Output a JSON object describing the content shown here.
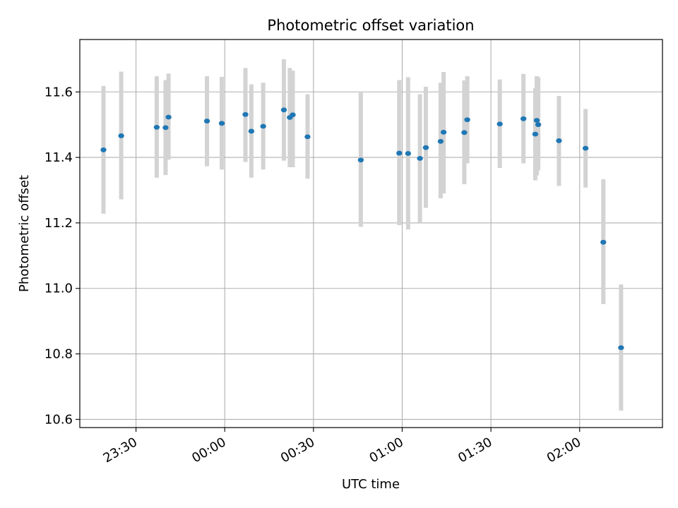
{
  "chart_data": {
    "type": "scatter",
    "title": "Photometric offset variation",
    "xlabel": "UTC time",
    "ylabel": "Photometric offset",
    "x_is_time": true,
    "x_ticks": [
      "23:30",
      "00:00",
      "00:30",
      "01:00",
      "01:30",
      "02:00"
    ],
    "xlim": [
      "23:11",
      "02:28"
    ],
    "ylim": [
      10.575,
      11.76
    ],
    "y_ticks": [
      10.6,
      10.8,
      11.0,
      11.2,
      11.4,
      11.6
    ],
    "grid": true,
    "error_bar_color": "#d3d3d3",
    "point_color": "#1f77b4",
    "series": [
      {
        "points": [
          {
            "x": "23:19",
            "y": 11.423,
            "lo": 11.228,
            "hi": 11.618
          },
          {
            "x": "23:25",
            "y": 11.466,
            "lo": 11.272,
            "hi": 11.662
          },
          {
            "x": "23:37",
            "y": 11.492,
            "lo": 11.338,
            "hi": 11.648
          },
          {
            "x": "23:40",
            "y": 11.491,
            "lo": 11.346,
            "hi": 11.636
          },
          {
            "x": "23:41",
            "y": 11.523,
            "lo": 11.393,
            "hi": 11.656
          },
          {
            "x": "23:54",
            "y": 11.511,
            "lo": 11.373,
            "hi": 11.648
          },
          {
            "x": "23:59",
            "y": 11.504,
            "lo": 11.363,
            "hi": 11.646
          },
          {
            "x": "00:07",
            "y": 11.531,
            "lo": 11.386,
            "hi": 11.673
          },
          {
            "x": "00:09",
            "y": 11.48,
            "lo": 11.338,
            "hi": 11.623
          },
          {
            "x": "00:13",
            "y": 11.495,
            "lo": 11.363,
            "hi": 11.628
          },
          {
            "x": "00:20",
            "y": 11.545,
            "lo": 11.39,
            "hi": 11.7
          },
          {
            "x": "00:22",
            "y": 11.522,
            "lo": 11.37,
            "hi": 11.673
          },
          {
            "x": "00:23",
            "y": 11.53,
            "lo": 11.37,
            "hi": 11.665
          },
          {
            "x": "00:28",
            "y": 11.463,
            "lo": 11.335,
            "hi": 11.593
          },
          {
            "x": "00:46",
            "y": 11.392,
            "lo": 11.188,
            "hi": 11.598
          },
          {
            "x": "00:59",
            "y": 11.413,
            "lo": 11.193,
            "hi": 11.636
          },
          {
            "x": "01:02",
            "y": 11.412,
            "lo": 11.18,
            "hi": 11.645
          },
          {
            "x": "01:06",
            "y": 11.397,
            "lo": 11.2,
            "hi": 11.593
          },
          {
            "x": "01:08",
            "y": 11.43,
            "lo": 11.246,
            "hi": 11.616
          },
          {
            "x": "01:13",
            "y": 11.449,
            "lo": 11.275,
            "hi": 11.628
          },
          {
            "x": "01:14",
            "y": 11.477,
            "lo": 11.29,
            "hi": 11.661
          },
          {
            "x": "01:21",
            "y": 11.476,
            "lo": 11.318,
            "hi": 11.635
          },
          {
            "x": "01:22",
            "y": 11.515,
            "lo": 11.382,
            "hi": 11.648
          },
          {
            "x": "01:33",
            "y": 11.502,
            "lo": 11.368,
            "hi": 11.638
          },
          {
            "x": "01:41",
            "y": 11.518,
            "lo": 11.382,
            "hi": 11.655
          },
          {
            "x": "01:45",
            "y": 11.471,
            "lo": 11.33,
            "hi": 11.612
          },
          {
            "x": "01:45:30",
            "y": 11.513,
            "lo": 11.345,
            "hi": 11.648
          },
          {
            "x": "01:46",
            "y": 11.5,
            "lo": 11.36,
            "hi": 11.645
          },
          {
            "x": "01:53",
            "y": 11.451,
            "lo": 11.313,
            "hi": 11.588
          },
          {
            "x": "02:02",
            "y": 11.428,
            "lo": 11.308,
            "hi": 11.548
          },
          {
            "x": "02:08",
            "y": 11.141,
            "lo": 10.952,
            "hi": 11.333
          },
          {
            "x": "02:14",
            "y": 10.819,
            "lo": 10.627,
            "hi": 11.012
          }
        ]
      }
    ]
  }
}
